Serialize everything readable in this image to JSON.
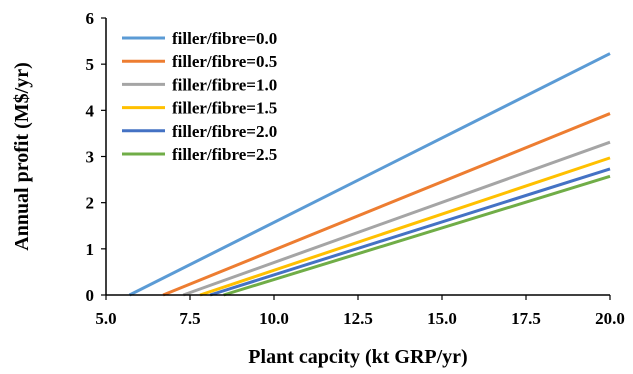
{
  "chart_data": {
    "type": "line",
    "xlabel": "Plant capcity (kt GRP/yr)",
    "ylabel": "Annual profit (M$/yr)",
    "xlim": [
      5.0,
      20.0
    ],
    "ylim": [
      0,
      6
    ],
    "x_ticks": [
      "5.0",
      "7.5",
      "10.0",
      "12.5",
      "15.0",
      "17.5",
      "20.0"
    ],
    "y_ticks": [
      "0",
      "1",
      "2",
      "3",
      "4",
      "5",
      "6"
    ],
    "grid": false,
    "legend_position": "top-left",
    "series": [
      {
        "name": "filler/fibre=0.0",
        "color": "#5b9bd5",
        "points": [
          [
            5.7,
            0
          ],
          [
            20.0,
            5.23
          ]
        ]
      },
      {
        "name": "filler/fibre=0.5",
        "color": "#ed7d31",
        "points": [
          [
            6.7,
            0
          ],
          [
            20.0,
            3.93
          ]
        ]
      },
      {
        "name": "filler/fibre=1.0",
        "color": "#a5a5a5",
        "points": [
          [
            7.3,
            0
          ],
          [
            20.0,
            3.31
          ]
        ]
      },
      {
        "name": "filler/fibre=1.5",
        "color": "#ffc000",
        "points": [
          [
            7.8,
            0
          ],
          [
            20.0,
            2.97
          ]
        ]
      },
      {
        "name": "filler/fibre=2.0",
        "color": "#4472c4",
        "points": [
          [
            8.1,
            0
          ],
          [
            20.0,
            2.73
          ]
        ]
      },
      {
        "name": "filler/fibre=2.5",
        "color": "#70ad47",
        "points": [
          [
            8.5,
            0
          ],
          [
            20.0,
            2.57
          ]
        ]
      }
    ]
  }
}
